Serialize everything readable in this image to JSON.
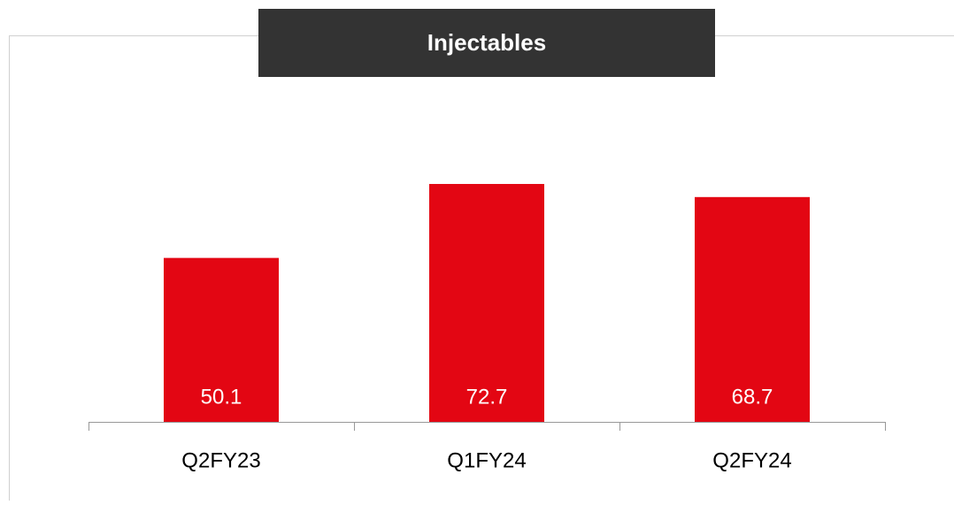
{
  "chart_data": {
    "type": "bar",
    "title": "Injectables",
    "categories": [
      "Q2FY23",
      "Q1FY24",
      "Q2FY24"
    ],
    "values": [
      50.1,
      72.7,
      68.7
    ],
    "color": "#e30613",
    "ylim": [
      0,
      100
    ]
  }
}
